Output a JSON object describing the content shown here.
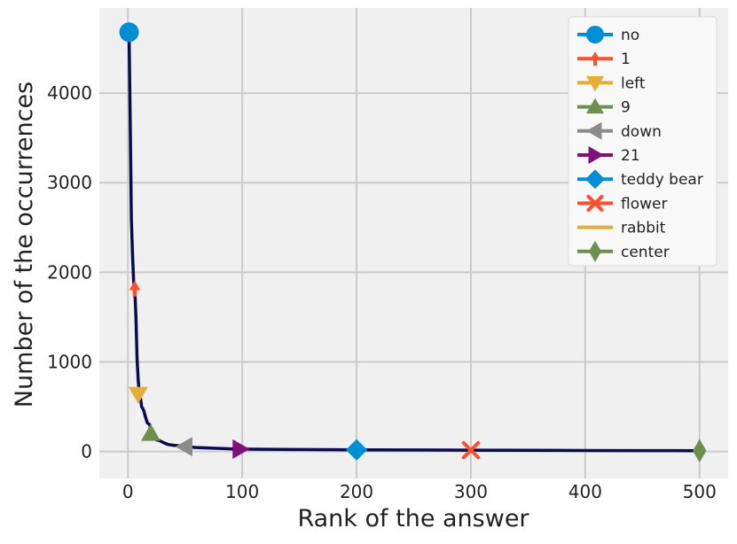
{
  "chart_data": {
    "type": "line",
    "title": "",
    "xlabel": "Rank of the answer",
    "ylabel": "Number of the occurrences",
    "xlim": [
      -25,
      525
    ],
    "ylim": [
      -300,
      4950
    ],
    "xticks": [
      0,
      100,
      200,
      300,
      400,
      500
    ],
    "yticks": [
      0,
      1000,
      2000,
      3000,
      4000
    ],
    "grid": true,
    "legend_position": "top-right",
    "curve": {
      "color": "#0b0b4f",
      "x": [
        1,
        2,
        3,
        4,
        5,
        6,
        7,
        8,
        9,
        10,
        11,
        12,
        13,
        14,
        15,
        17,
        19,
        21,
        23,
        25,
        28,
        31,
        35,
        40,
        45,
        50,
        60,
        70,
        80,
        90,
        100,
        120,
        150,
        200,
        250,
        300,
        350,
        400,
        450,
        500
      ],
      "y": [
        4680,
        3700,
        2600,
        2200,
        1900,
        1800,
        1500,
        1050,
        800,
        650,
        600,
        500,
        480,
        450,
        400,
        320,
        300,
        200,
        150,
        130,
        120,
        100,
        80,
        70,
        65,
        55,
        45,
        40,
        35,
        30,
        27,
        25,
        22,
        19,
        17,
        15,
        13,
        11,
        10,
        9
      ]
    },
    "series": [
      {
        "name": "no",
        "x": 1,
        "y": 4680,
        "marker": "circle",
        "color": "#008fd5"
      },
      {
        "name": "1",
        "x": 6,
        "y": 1820,
        "marker": "tri_up_small",
        "color": "#fc4f30"
      },
      {
        "name": "left",
        "x": 9,
        "y": 640,
        "marker": "triangle_down",
        "color": "#e5ae38"
      },
      {
        "name": "9",
        "x": 20,
        "y": 200,
        "marker": "triangle_up",
        "color": "#6d904f"
      },
      {
        "name": "down",
        "x": 50,
        "y": 55,
        "marker": "triangle_left",
        "color": "#8b8b8b"
      },
      {
        "name": "21",
        "x": 98,
        "y": 28,
        "marker": "triangle_right",
        "color": "#810f7c"
      },
      {
        "name": "teddy bear",
        "x": 200,
        "y": 19,
        "marker": "diamond",
        "color": "#008fd5"
      },
      {
        "name": "flower",
        "x": 300,
        "y": 15,
        "marker": "x",
        "color": "#fc4f30"
      },
      {
        "name": "rabbit",
        "x": 400,
        "y": 11,
        "marker": "none",
        "color": "#e5ae38"
      },
      {
        "name": "center",
        "x": 500,
        "y": 9,
        "marker": "thin_diamond",
        "color": "#6d904f"
      }
    ]
  }
}
